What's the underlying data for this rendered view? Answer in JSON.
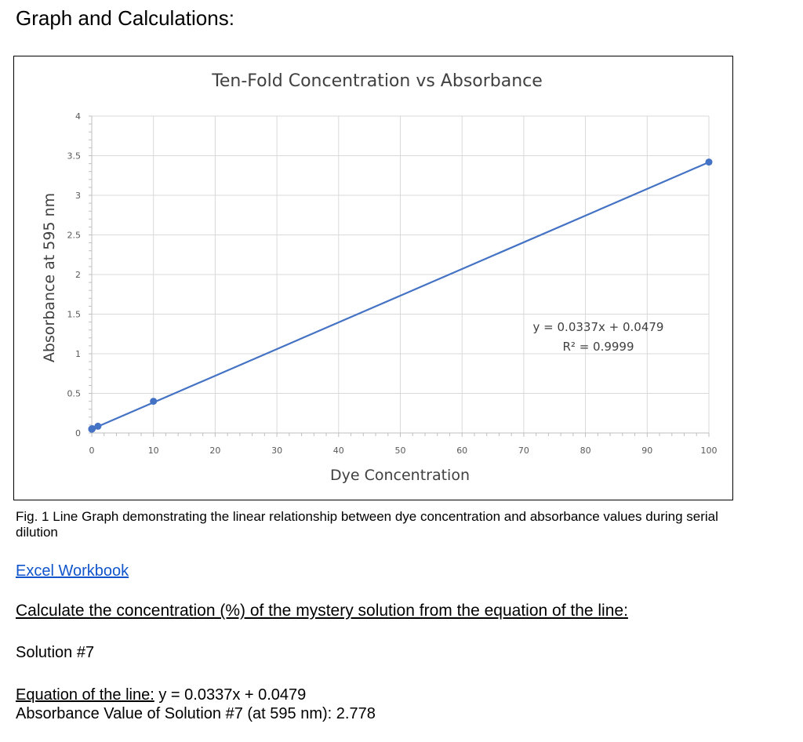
{
  "heading": "Graph and Calculations:",
  "chart_data": {
    "type": "scatter",
    "title": "Ten-Fold Concentration vs Absorbance",
    "xlabel": "Dye Concentration",
    "ylabel": "Absorbance at 595 nm",
    "xlim": [
      0,
      100
    ],
    "ylim": [
      0,
      4
    ],
    "x_ticks": [
      "0",
      "10",
      "20",
      "30",
      "40",
      "50",
      "60",
      "70",
      "80",
      "90",
      "100"
    ],
    "y_ticks": [
      "0",
      "0.5",
      "1",
      "1.5",
      "2",
      "2.5",
      "3",
      "3.5",
      "4"
    ],
    "grid": true,
    "series": [
      {
        "x": [
          0.0001,
          0.001,
          0.01,
          0.1,
          1,
          10,
          100
        ],
        "y": [
          0.048,
          0.049,
          0.05,
          0.055,
          0.085,
          0.4,
          3.42
        ]
      }
    ],
    "trendline": {
      "slope": 0.0337,
      "intercept": 0.0479
    },
    "equation": "y = 0.0337x + 0.0479",
    "r_squared": "R² = 0.9999",
    "colors": {
      "series": "#4472c4",
      "grid": "#d9d9d9",
      "text": "#404040"
    }
  },
  "caption": "Fig. 1 Line Graph demonstrating the linear relationship between dye concentration and absorbance values during serial dilution",
  "link_text": "Excel Workbook",
  "question": "Calculate the concentration (%) of the mystery solution from the equation of the line:",
  "solution_label": "Solution #7",
  "equation_label": "Equation of the line:",
  "equation_value": " y = 0.0337x + 0.0479",
  "absorbance_line": "Absorbance Value of Solution #7 (at 595 nm): 2.778"
}
